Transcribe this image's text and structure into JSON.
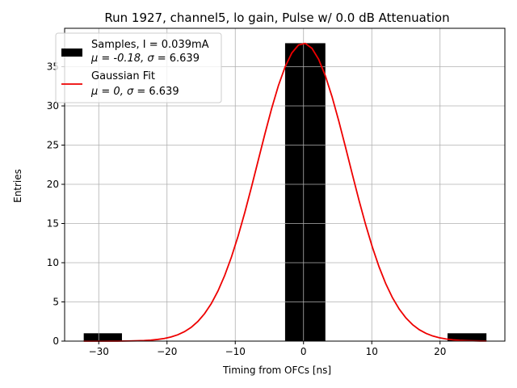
{
  "chart_data": {
    "type": "bar",
    "title": "Run 1927, channel5, lo gain, Pulse w/ 0.0 dB Attenuation",
    "xlabel": "Timing from OFCs [ns]",
    "ylabel": "Entries",
    "xlim": [
      -35,
      29.5
    ],
    "ylim": [
      0,
      39.9
    ],
    "grid": true,
    "x_ticks": [
      -30,
      -20,
      -10,
      0,
      10,
      20
    ],
    "x_tick_labels": [
      "−30",
      "−20",
      "−10",
      "0",
      "10",
      "20"
    ],
    "y_ticks": [
      0,
      5,
      10,
      15,
      20,
      25,
      30,
      35
    ],
    "y_tick_labels": [
      "0",
      "5",
      "10",
      "15",
      "20",
      "25",
      "30",
      "35"
    ],
    "histogram": {
      "name": "Samples",
      "color": "#000000",
      "bins": [
        {
          "x0": -32.2,
          "x1": -26.6,
          "count": 1
        },
        {
          "x0": -2.7,
          "x1": 3.2,
          "count": 38
        },
        {
          "x0": 21.1,
          "x1": 26.8,
          "count": 1
        }
      ]
    },
    "fit": {
      "name": "Gaussian Fit",
      "color": "#ee0000",
      "mu": 0,
      "sigma": 6.639,
      "amplitude": 38,
      "x_range": [
        -32.2,
        26.8
      ]
    },
    "legend": {
      "position": "top-left",
      "entries": [
        {
          "kind": "patch",
          "color": "#000000",
          "line1": "Samples, I = 0.039mA",
          "line2_prefix": "μ = -0.18, ",
          "line2_sigma": "σ",
          "line2_suffix": " = 6.639"
        },
        {
          "kind": "line",
          "color": "#ee0000",
          "line1": "Gaussian Fit",
          "line2_prefix": "μ = 0, ",
          "line2_sigma": "σ",
          "line2_suffix": " = 6.639"
        }
      ]
    }
  }
}
